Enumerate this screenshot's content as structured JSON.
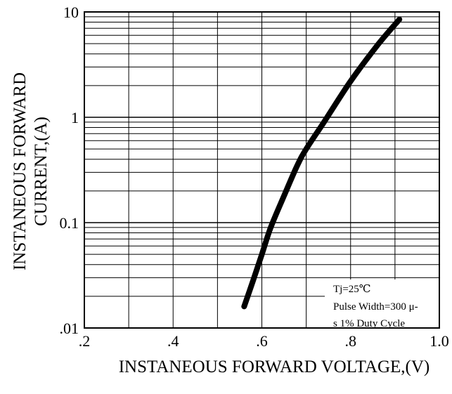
{
  "chart_data": {
    "type": "line",
    "title": "",
    "xlabel": "INSTANEOUS FORWARD VOLTAGE,(V)",
    "ylabel_lines": [
      "INSTANEOUS FORWARD",
      "CURRENT,(A)"
    ],
    "xlim": [
      0.2,
      1.0
    ],
    "ylim": [
      0.01,
      10
    ],
    "yscale": "log",
    "grid": true,
    "x_ticks": [
      0.2,
      0.3,
      0.4,
      0.5,
      0.6,
      0.7,
      0.8,
      0.9,
      1.0
    ],
    "x_tick_labels": [
      {
        "value": 0.2,
        "label": ".2"
      },
      {
        "value": 0.4,
        "label": ".4"
      },
      {
        "value": 0.6,
        "label": ".6"
      },
      {
        "value": 0.8,
        "label": ".8"
      },
      {
        "value": 1.0,
        "label": "1.0"
      }
    ],
    "y_tick_labels": [
      {
        "value": 10,
        "label": "10"
      },
      {
        "value": 1,
        "label": "1"
      },
      {
        "value": 0.1,
        "label": "0.1"
      },
      {
        "value": 0.01,
        "label": ".01"
      }
    ],
    "series": [
      {
        "x": [
          0.56,
          0.58,
          0.6,
          0.62,
          0.65,
          0.68,
          0.7,
          0.74,
          0.8,
          0.86,
          0.91
        ],
        "y": [
          0.016,
          0.028,
          0.05,
          0.09,
          0.18,
          0.35,
          0.5,
          0.9,
          2.2,
          4.8,
          8.5
        ]
      }
    ],
    "annotation": {
      "lines": [
        "Tj=25℃",
        "Pulse Width=300 μ-",
        "s 1% Duty Cycle"
      ]
    }
  }
}
